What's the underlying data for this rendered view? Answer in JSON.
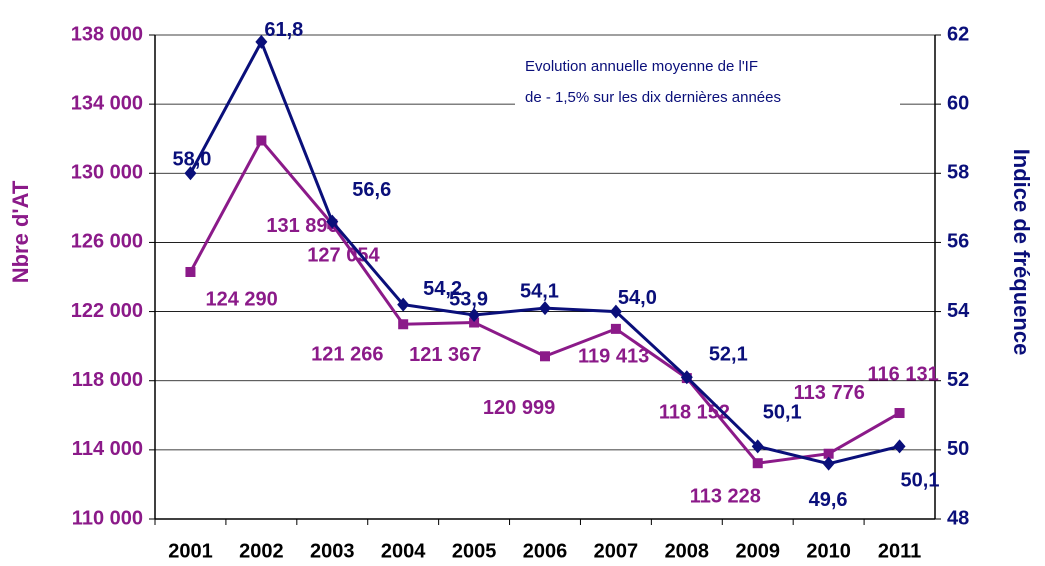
{
  "chart_data": {
    "type": "line",
    "categories": [
      "2001",
      "2002",
      "2003",
      "2004",
      "2005",
      "2006",
      "2007",
      "2008",
      "2009",
      "2010",
      "2011"
    ],
    "y_label": "Nbre d'AT",
    "y2_label": "Indice de fréquence",
    "annotation": [
      "Evolution annuelle moyenne de l'IF",
      "de - 1,5% sur les dix dernières années"
    ],
    "series": [
      {
        "name": "Nbre d'AT",
        "color": "#8b1a89",
        "marker": "square",
        "values": [
          124290,
          131896,
          127054,
          121266,
          121367,
          119413,
          120999,
          118152,
          113228,
          113776,
          116131
        ],
        "value_labels": [
          "124 290",
          "131 896",
          "127 054",
          "121 266",
          "121 367",
          "119 413",
          "120 999",
          "118 152",
          "113 228",
          "113 776",
          "116 131"
        ]
      },
      {
        "name": "Indice de fréquence",
        "color": "#0a0f7a",
        "marker": "diamond",
        "axis": "y2",
        "values": [
          58.0,
          61.8,
          56.6,
          54.2,
          53.9,
          54.1,
          54.0,
          52.1,
          50.1,
          49.6,
          50.1
        ],
        "value_labels": [
          "58,0",
          "61,8",
          "56,6",
          "54,2",
          "53,9",
          "54,1",
          "54,0",
          "52,1",
          "50,1",
          "49,6",
          "50,1"
        ]
      }
    ],
    "ylim": [
      110000,
      138000
    ],
    "yticks": [
      {
        "value": 110000,
        "label": "110 000"
      },
      {
        "value": 114000,
        "label": "114 000"
      },
      {
        "value": 118000,
        "label": "118 000"
      },
      {
        "value": 122000,
        "label": "122 000"
      },
      {
        "value": 126000,
        "label": "126 000"
      },
      {
        "value": 130000,
        "label": "130 000"
      },
      {
        "value": 134000,
        "label": "134 000"
      },
      {
        "value": 138000,
        "label": "138 000"
      }
    ],
    "y2lim": [
      48,
      62
    ],
    "y2ticks": [
      48,
      50,
      52,
      54,
      56,
      58,
      60,
      62
    ],
    "grid": true
  }
}
